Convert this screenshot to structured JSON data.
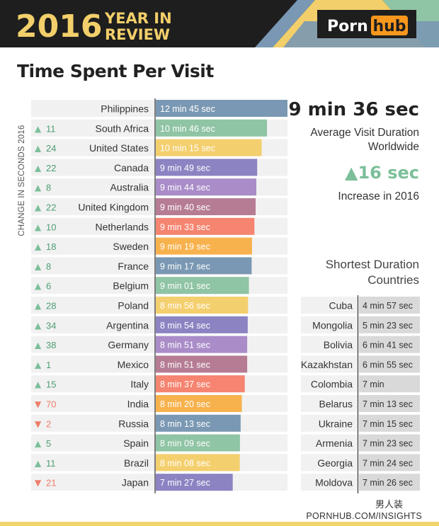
{
  "header": {
    "year": "2016",
    "subtitle_line1": "YEAR IN",
    "subtitle_line2": "REVIEW",
    "brand_porn": "Porn",
    "brand_hub": "hub"
  },
  "colors": {
    "banner_bg": "#1e1e1e",
    "accent_yellow": "#f2cf6a",
    "brand_orange": "#f7971e",
    "up_green": "#7cbf9a",
    "down_red": "#ef7d6a",
    "row_bg": "#f1f1f1",
    "bar_palette": [
      "#7a98b3",
      "#8fc4a4",
      "#f4cf6e",
      "#8b83c2",
      "#a98cc8",
      "#b67c94",
      "#f58470",
      "#f7b24e"
    ]
  },
  "chart_data": {
    "type": "bar",
    "title": "Time Spent Per Visit",
    "ylabel": "CHANGE IN SECONDS 2016",
    "xlim_seconds": [
      0,
      765
    ],
    "categories": [
      "Philippines",
      "South Africa",
      "United States",
      "Canada",
      "Australia",
      "United Kingdom",
      "Netherlands",
      "Sweden",
      "France",
      "Belgium",
      "Poland",
      "Argentina",
      "Germany",
      "Mexico",
      "Italy",
      "India",
      "Russia",
      "Spain",
      "Brazil",
      "Japan"
    ],
    "values_seconds": [
      765,
      646,
      615,
      589,
      584,
      580,
      573,
      559,
      557,
      541,
      536,
      534,
      531,
      531,
      517,
      500,
      493,
      489,
      488,
      447
    ],
    "value_labels": [
      "12 min 45 sec",
      "10 min 46 sec",
      "10 min 15 sec",
      "9 min 49 sec",
      "9 min 44 sec",
      "9 min 40 sec",
      "9 min 33 sec",
      "9 min 19 sec",
      "9 min 17 sec",
      "9 min 01 sec",
      "8 min 56 sec",
      "8 min 54 sec",
      "8 min 51 sec",
      "8 min 51 sec",
      "8 min 37 sec",
      "8 min 20 sec",
      "8 min 13 sec",
      "8 min 09 sec",
      "8 min 08 sec",
      "7 min 27 sec"
    ],
    "changes": [
      null,
      11,
      24,
      22,
      8,
      22,
      10,
      18,
      8,
      6,
      28,
      34,
      38,
      1,
      15,
      -70,
      -2,
      5,
      11,
      -21
    ],
    "change_labels": [
      "",
      "11",
      "24",
      "22",
      "8",
      "22",
      "10",
      "18",
      "8",
      "6",
      "28",
      "34",
      "38",
      "1",
      "15",
      "70",
      "2",
      "5",
      "11",
      "21"
    ],
    "up_symbol": "▲",
    "down_symbol": "▼"
  },
  "summary": {
    "avg_value": "9 min 36 sec",
    "avg_label_line1": "Average Visit Duration",
    "avg_label_line2": "Worldwide",
    "increase_value": "▲16 sec",
    "increase_label": "Increase in 2016"
  },
  "shortest": {
    "heading_line1": "Shortest Duration",
    "heading_line2": "Countries",
    "countries": [
      "Cuba",
      "Mongolia",
      "Bolivia",
      "Kazakhstan",
      "Colombia",
      "Belarus",
      "Ukraine",
      "Armenia",
      "Georgia",
      "Moldova"
    ],
    "durations": [
      "4 min 57 sec",
      "5 min 23 sec",
      "6 min 41 sec",
      "6 min 55 sec",
      "7 min",
      "7 min 13 sec",
      "7 min 15 sec",
      "7 min 23 sec",
      "7 min 24 sec",
      "7 min 26 sec"
    ]
  },
  "footer": {
    "url": "PORNHUB.COM/INSIGHTS",
    "watermark": "男人装"
  }
}
